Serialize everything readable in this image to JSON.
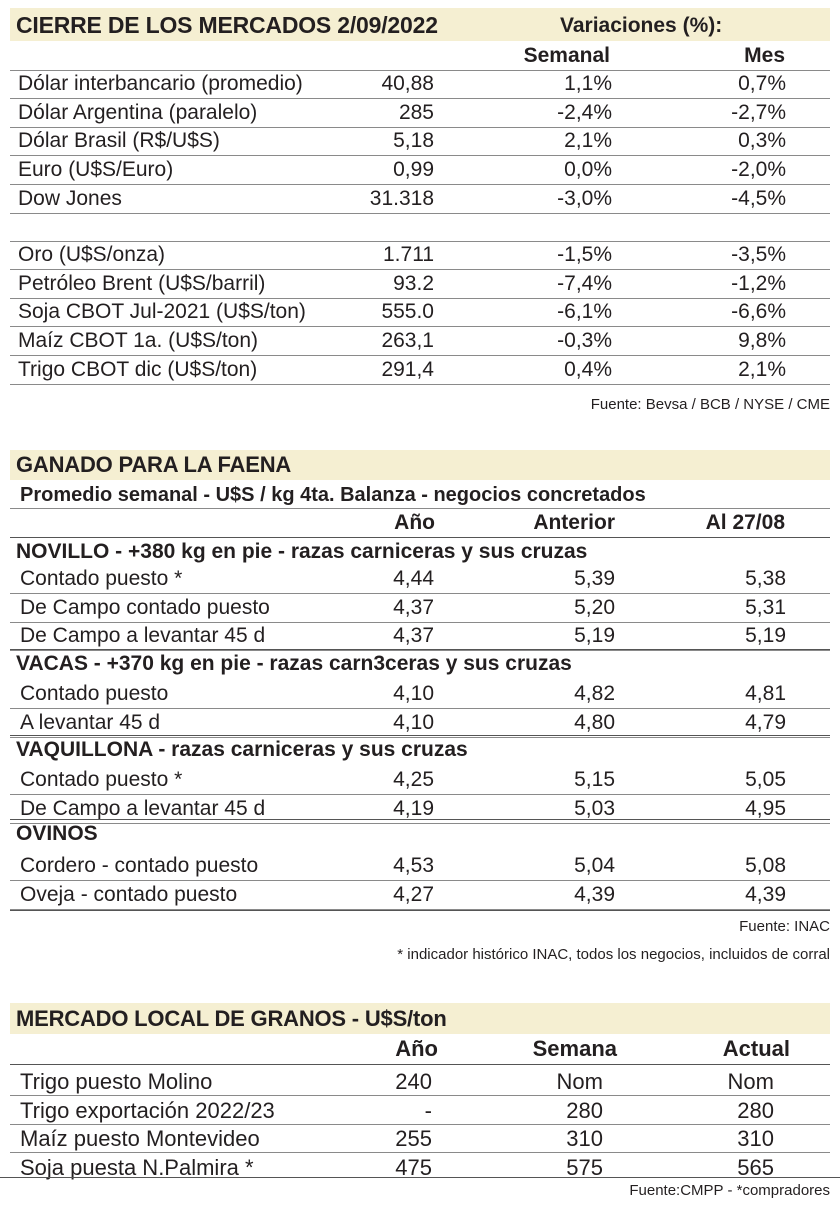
{
  "mercados": {
    "title": "CIERRE DE LOS MERCADOS  2/09/2022",
    "variaciones_label": "Variaciones (%):",
    "col_semanal": "Semanal",
    "col_mes": "Mes",
    "rows_group1": [
      {
        "label": "Dólar interbancario (promedio)",
        "value": "40,88",
        "semanal": "1,1%",
        "mes": "0,7%"
      },
      {
        "label": "Dólar Argentina (paralelo)",
        "value": "285",
        "semanal": "-2,4%",
        "mes": "-2,7%"
      },
      {
        "label": "Dólar Brasil (R$/U$S)",
        "value": "5,18",
        "semanal": "2,1%",
        "mes": "0,3%"
      },
      {
        "label": "Euro (U$S/Euro)",
        "value": "0,99",
        "semanal": "0,0%",
        "mes": "-2,0%"
      },
      {
        "label": "Dow Jones",
        "value": "31.318",
        "semanal": "-3,0%",
        "mes": "-4,5%"
      }
    ],
    "rows_group2": [
      {
        "label": "Oro (U$S/onza)",
        "value": "1.711",
        "semanal": "-1,5%",
        "mes": "-3,5%"
      },
      {
        "label": "Petróleo Brent (U$S/barril)",
        "value": "93.2",
        "semanal": "-7,4%",
        "mes": "-1,2%"
      },
      {
        "label": "Soja CBOT Jul-2021 (U$S/ton)",
        "value": "555.0",
        "semanal": "-6,1%",
        "mes": "-6,6%"
      },
      {
        "label": "Maíz CBOT 1a. (U$S/ton)",
        "value": "263,1",
        "semanal": "-0,3%",
        "mes": "9,8%"
      },
      {
        "label": "Trigo CBOT dic (U$S/ton)",
        "value": "291,4",
        "semanal": "0,4%",
        "mes": "2,1%"
      }
    ],
    "source": "Fuente: Bevsa / BCB / NYSE / CME"
  },
  "ganado": {
    "title": "GANADO PARA LA FAENA",
    "subtitle": "Promedio semanal - U$S / kg 4ta. Balanza - negocios concretados",
    "col_ano": "Año",
    "col_anterior": "Anterior",
    "col_al": "Al 27/08",
    "sections": [
      {
        "head_bold": "NOVILLO",
        "head_rest": " - +380 kg en pie - razas carniceras y sus cruzas",
        "rows": [
          {
            "label": "Contado puesto *",
            "ano": "4,44",
            "anterior": "5,39",
            "al": "5,38"
          },
          {
            "label": "De Campo contado puesto",
            "ano": "4,37",
            "anterior": "5,20",
            "al": "5,31"
          },
          {
            "label": "De Campo a levantar 45 d",
            "ano": "4,37",
            "anterior": "5,19",
            "al": "5,19"
          }
        ]
      },
      {
        "head_bold": "VACAS",
        "head_rest": " - +370 kg en pie - razas carn3ceras y sus cruzas",
        "rows": [
          {
            "label": "Contado puesto",
            "ano": "4,10",
            "anterior": "4,82",
            "al": "4,81"
          },
          {
            "label": "A levantar 45 d",
            "ano": "4,10",
            "anterior": "4,80",
            "al": "4,79"
          }
        ]
      },
      {
        "head_bold": "VAQUILLONA",
        "head_rest": " - razas carniceras y sus cruzas",
        "rows": [
          {
            "label": "Contado puesto *",
            "ano": "4,25",
            "anterior": "5,15",
            "al": "5,05"
          },
          {
            "label": "De Campo a levantar 45 d",
            "ano": "4,19",
            "anterior": "5,03",
            "al": "4,95"
          }
        ]
      },
      {
        "head_bold": "OVINOS",
        "head_rest": "",
        "rows": [
          {
            "label": "Cordero - contado puesto",
            "ano": "4,53",
            "anterior": "5,04",
            "al": "5,08"
          },
          {
            "label": "Oveja - contado puesto",
            "ano": "4,27",
            "anterior": "4,39",
            "al": "4,39"
          }
        ]
      }
    ],
    "source": "Fuente: INAC",
    "footnote": "* indicador histórico INAC, todos los negocios, incluidos de corral"
  },
  "granos": {
    "title": "MERCADO LOCAL DE GRANOS - U$S/ton",
    "col_ano": "Año",
    "col_semana": "Semana",
    "col_actual": "Actual",
    "rows": [
      {
        "label": "Trigo puesto Molino",
        "ano": "240",
        "semana": "Nom",
        "actual": "Nom"
      },
      {
        "label": "Trigo exportación 2022/23",
        "ano": "-",
        "semana": "280",
        "actual": "280"
      },
      {
        "label": "Maíz puesto Montevideo",
        "ano": "255",
        "semana": "310",
        "actual": "310"
      },
      {
        "label": "Soja puesta N.Palmira *",
        "ano": "475",
        "semana": "575",
        "actual": "565"
      }
    ],
    "source": "Fuente:CMPP - *compradores"
  }
}
